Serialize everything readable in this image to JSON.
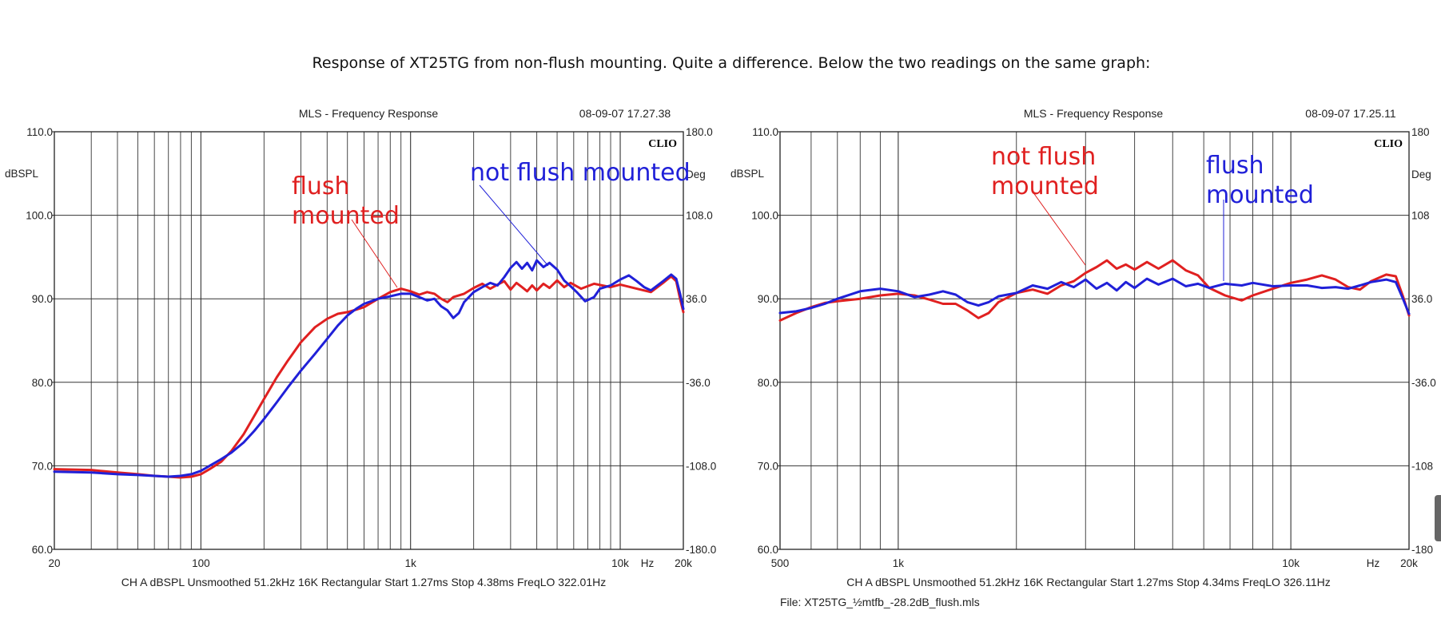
{
  "caption": "Response of XT25TG from non-flush mounting. Quite a difference. Below the two readings on the same graph:",
  "colors": {
    "red": "#e02020",
    "blue": "#2020d8",
    "grid": "#333333"
  },
  "chart_data": [
    {
      "type": "line",
      "title": "MLS - Frequency Response",
      "timestamp": "08-09-07 17.27.38",
      "logo": "CLIO",
      "ylabel": "dBSPL",
      "ylabel_right": "Deg",
      "x_scale": "log",
      "xlim": [
        20,
        20000
      ],
      "ylim": [
        60,
        110
      ],
      "y_ticks": [
        "110.0",
        "100.0",
        "90.0",
        "80.0",
        "70.0",
        "60.0"
      ],
      "y2_ticks": [
        "180.0",
        "108.0",
        "36.0",
        "-36.0",
        "-108.0",
        "-180.0"
      ],
      "x_ticks": [
        {
          "v": 20,
          "label": "20"
        },
        {
          "v": 100,
          "label": "100"
        },
        {
          "v": 1000,
          "label": "1k"
        },
        {
          "v": 10000,
          "label": "10k"
        },
        {
          "v": 20000,
          "label": "20k"
        }
      ],
      "x_unit": "Hz",
      "footer": "CH A   dBSPL   Unsmoothed   51.2kHz   16K   Rectangular   Start 1.27ms    Stop 4.38ms    FreqLO 322.01Hz",
      "file": "",
      "annotations": [
        {
          "lines": [
            "flush",
            "mounted"
          ],
          "color": "red"
        },
        {
          "lines": [
            "not flush mounted"
          ],
          "color": "blue"
        }
      ],
      "series": [
        {
          "color": "red",
          "points": [
            [
              20,
              69.6
            ],
            [
              30,
              69.5
            ],
            [
              40,
              69.2
            ],
            [
              50,
              69.0
            ],
            [
              60,
              68.8
            ],
            [
              70,
              68.7
            ],
            [
              80,
              68.6
            ],
            [
              90,
              68.7
            ],
            [
              100,
              69.0
            ],
            [
              110,
              69.6
            ],
            [
              125,
              70.5
            ],
            [
              140,
              71.8
            ],
            [
              160,
              73.8
            ],
            [
              180,
              76.0
            ],
            [
              200,
              78.0
            ],
            [
              230,
              80.6
            ],
            [
              260,
              82.6
            ],
            [
              300,
              84.8
            ],
            [
              350,
              86.6
            ],
            [
              400,
              87.6
            ],
            [
              450,
              88.2
            ],
            [
              500,
              88.4
            ],
            [
              550,
              88.7
            ],
            [
              600,
              89.0
            ],
            [
              700,
              90.0
            ],
            [
              800,
              90.8
            ],
            [
              900,
              91.2
            ],
            [
              1000,
              90.9
            ],
            [
              1100,
              90.5
            ],
            [
              1200,
              90.8
            ],
            [
              1300,
              90.6
            ],
            [
              1400,
              90.0
            ],
            [
              1500,
              89.6
            ],
            [
              1600,
              90.2
            ],
            [
              1800,
              90.6
            ],
            [
              2000,
              91.3
            ],
            [
              2200,
              91.8
            ],
            [
              2400,
              91.2
            ],
            [
              2600,
              91.7
            ],
            [
              2800,
              92.1
            ],
            [
              3000,
              91.1
            ],
            [
              3200,
              91.9
            ],
            [
              3400,
              91.4
            ],
            [
              3600,
              90.9
            ],
            [
              3800,
              91.6
            ],
            [
              4000,
              91.0
            ],
            [
              4300,
              91.8
            ],
            [
              4600,
              91.3
            ],
            [
              5000,
              92.2
            ],
            [
              5400,
              91.4
            ],
            [
              5800,
              91.9
            ],
            [
              6500,
              91.2
            ],
            [
              7500,
              91.8
            ],
            [
              9000,
              91.4
            ],
            [
              10000,
              91.7
            ],
            [
              12000,
              91.2
            ],
            [
              14000,
              90.8
            ],
            [
              16000,
              91.9
            ],
            [
              17500,
              92.7
            ],
            [
              18500,
              92.1
            ],
            [
              19300,
              90.0
            ],
            [
              20000,
              88.4
            ]
          ]
        },
        {
          "color": "blue",
          "points": [
            [
              20,
              69.3
            ],
            [
              30,
              69.2
            ],
            [
              40,
              69.0
            ],
            [
              50,
              68.9
            ],
            [
              60,
              68.8
            ],
            [
              70,
              68.7
            ],
            [
              80,
              68.8
            ],
            [
              90,
              69.0
            ],
            [
              100,
              69.4
            ],
            [
              110,
              70.0
            ],
            [
              125,
              70.8
            ],
            [
              140,
              71.6
            ],
            [
              160,
              72.8
            ],
            [
              180,
              74.2
            ],
            [
              200,
              75.6
            ],
            [
              230,
              77.6
            ],
            [
              260,
              79.4
            ],
            [
              300,
              81.4
            ],
            [
              350,
              83.4
            ],
            [
              400,
              85.2
            ],
            [
              450,
              86.8
            ],
            [
              500,
              88.0
            ],
            [
              550,
              88.8
            ],
            [
              600,
              89.4
            ],
            [
              700,
              90.0
            ],
            [
              800,
              90.3
            ],
            [
              900,
              90.6
            ],
            [
              1000,
              90.6
            ],
            [
              1100,
              90.2
            ],
            [
              1200,
              89.8
            ],
            [
              1300,
              90.0
            ],
            [
              1400,
              89.1
            ],
            [
              1500,
              88.6
            ],
            [
              1600,
              87.7
            ],
            [
              1700,
              88.3
            ],
            [
              1800,
              89.6
            ],
            [
              2000,
              90.8
            ],
            [
              2200,
              91.4
            ],
            [
              2400,
              91.9
            ],
            [
              2600,
              91.6
            ],
            [
              2800,
              92.6
            ],
            [
              3000,
              93.7
            ],
            [
              3200,
              94.4
            ],
            [
              3400,
              93.6
            ],
            [
              3600,
              94.3
            ],
            [
              3800,
              93.4
            ],
            [
              4000,
              94.6
            ],
            [
              4300,
              93.8
            ],
            [
              4600,
              94.3
            ],
            [
              5000,
              93.5
            ],
            [
              5400,
              92.2
            ],
            [
              5800,
              91.5
            ],
            [
              6200,
              90.8
            ],
            [
              6800,
              89.7
            ],
            [
              7500,
              90.2
            ],
            [
              8000,
              91.2
            ],
            [
              9000,
              91.6
            ],
            [
              10000,
              92.3
            ],
            [
              11000,
              92.8
            ],
            [
              12000,
              92.1
            ],
            [
              13000,
              91.4
            ],
            [
              14000,
              91.0
            ],
            [
              16000,
              92.1
            ],
            [
              17500,
              92.9
            ],
            [
              18500,
              92.4
            ],
            [
              19300,
              90.6
            ],
            [
              20000,
              88.8
            ]
          ]
        }
      ]
    },
    {
      "type": "line",
      "title": "MLS - Frequency Response",
      "timestamp": "08-09-07 17.25.11",
      "logo": "CLIO",
      "ylabel": "dBSPL",
      "ylabel_right": "Deg",
      "x_scale": "log",
      "xlim": [
        500,
        20000
      ],
      "ylim": [
        60,
        110
      ],
      "y_ticks": [
        "110.0",
        "100.0",
        "90.0",
        "80.0",
        "70.0",
        "60.0"
      ],
      "y2_ticks": [
        "180",
        "108",
        "36.0",
        "-36.0",
        "-108",
        "-180"
      ],
      "x_ticks": [
        {
          "v": 500,
          "label": "500"
        },
        {
          "v": 1000,
          "label": "1k"
        },
        {
          "v": 10000,
          "label": "10k"
        },
        {
          "v": 20000,
          "label": "20k"
        }
      ],
      "x_unit": "Hz",
      "footer": "CH A   dBSPL   Unsmoothed   51.2kHz   16K   Rectangular   Start 1.27ms    Stop 4.34ms    FreqLO 326.11Hz",
      "file": "File: XT25TG_½mtfb_-28.2dB_flush.mls",
      "annotations": [
        {
          "lines": [
            "not flush",
            "mounted"
          ],
          "color": "red"
        },
        {
          "lines": [
            "flush",
            "mounted"
          ],
          "color": "blue"
        }
      ],
      "series": [
        {
          "color": "red",
          "points": [
            [
              500,
              87.4
            ],
            [
              550,
              88.3
            ],
            [
              600,
              89.0
            ],
            [
              650,
              89.5
            ],
            [
              700,
              89.7
            ],
            [
              800,
              90.0
            ],
            [
              900,
              90.4
            ],
            [
              1000,
              90.6
            ],
            [
              1100,
              90.4
            ],
            [
              1200,
              89.9
            ],
            [
              1300,
              89.4
            ],
            [
              1400,
              89.4
            ],
            [
              1500,
              88.6
            ],
            [
              1600,
              87.7
            ],
            [
              1700,
              88.3
            ],
            [
              1800,
              89.6
            ],
            [
              2000,
              90.7
            ],
            [
              2200,
              91.1
            ],
            [
              2400,
              90.6
            ],
            [
              2600,
              91.6
            ],
            [
              2800,
              92.1
            ],
            [
              3000,
              93.1
            ],
            [
              3200,
              93.8
            ],
            [
              3400,
              94.6
            ],
            [
              3600,
              93.6
            ],
            [
              3800,
              94.1
            ],
            [
              4000,
              93.5
            ],
            [
              4300,
              94.4
            ],
            [
              4600,
              93.6
            ],
            [
              5000,
              94.6
            ],
            [
              5400,
              93.4
            ],
            [
              5800,
              92.8
            ],
            [
              6200,
              91.3
            ],
            [
              6800,
              90.4
            ],
            [
              7500,
              89.8
            ],
            [
              8000,
              90.4
            ],
            [
              9000,
              91.2
            ],
            [
              10000,
              91.9
            ],
            [
              11000,
              92.3
            ],
            [
              12000,
              92.8
            ],
            [
              13000,
              92.3
            ],
            [
              14000,
              91.4
            ],
            [
              15000,
              91.1
            ],
            [
              16000,
              92.1
            ],
            [
              17500,
              92.9
            ],
            [
              18500,
              92.7
            ],
            [
              19300,
              90.3
            ],
            [
              20000,
              88.0
            ]
          ]
        },
        {
          "color": "blue",
          "points": [
            [
              500,
              88.3
            ],
            [
              550,
              88.5
            ],
            [
              600,
              88.9
            ],
            [
              650,
              89.4
            ],
            [
              700,
              90.0
            ],
            [
              800,
              90.9
            ],
            [
              900,
              91.2
            ],
            [
              1000,
              90.9
            ],
            [
              1100,
              90.2
            ],
            [
              1200,
              90.5
            ],
            [
              1300,
              90.9
            ],
            [
              1400,
              90.5
            ],
            [
              1500,
              89.6
            ],
            [
              1600,
              89.2
            ],
            [
              1700,
              89.6
            ],
            [
              1800,
              90.3
            ],
            [
              2000,
              90.7
            ],
            [
              2200,
              91.6
            ],
            [
              2400,
              91.2
            ],
            [
              2600,
              92.0
            ],
            [
              2800,
              91.4
            ],
            [
              3000,
              92.3
            ],
            [
              3200,
              91.2
            ],
            [
              3400,
              91.9
            ],
            [
              3600,
              91.0
            ],
            [
              3800,
              92.0
            ],
            [
              4000,
              91.3
            ],
            [
              4300,
              92.4
            ],
            [
              4600,
              91.7
            ],
            [
              5000,
              92.4
            ],
            [
              5400,
              91.5
            ],
            [
              5800,
              91.8
            ],
            [
              6200,
              91.3
            ],
            [
              6800,
              91.8
            ],
            [
              7500,
              91.6
            ],
            [
              8000,
              91.9
            ],
            [
              9000,
              91.5
            ],
            [
              10000,
              91.6
            ],
            [
              11000,
              91.6
            ],
            [
              12000,
              91.3
            ],
            [
              13000,
              91.4
            ],
            [
              14000,
              91.2
            ],
            [
              15000,
              91.6
            ],
            [
              16000,
              92.0
            ],
            [
              17500,
              92.3
            ],
            [
              18500,
              92.0
            ],
            [
              19300,
              90.0
            ],
            [
              20000,
              88.2
            ]
          ]
        }
      ]
    }
  ]
}
